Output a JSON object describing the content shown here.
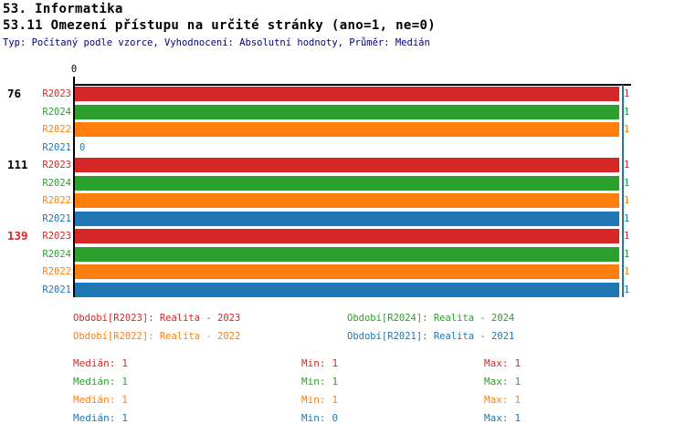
{
  "header": {
    "section_title": "53. Informatika",
    "chart_title": "53.11 Omezení přístupu na určité stránky (ano=1, ne=0)",
    "meta": "Typ: Počítaný podle vzorce, Vyhodnocení: Absolutní hodnoty, Průměr: Medián",
    "meta_color": "#000080"
  },
  "chart_data": {
    "type": "bar",
    "orientation": "horizontal",
    "title": "53.11 Omezení přístupu na určité stránky (ano=1, ne=0)",
    "value_axis": {
      "min": 0,
      "max": 1,
      "origin_tick_label": "0",
      "position": "top"
    },
    "reference_line": {
      "value": 1,
      "color": "#1f77b4"
    },
    "series_colors": {
      "R2023": "#d62728",
      "R2024": "#2ca02c",
      "R2022": "#ff7f0e",
      "R2021": "#1f77b4"
    },
    "groups": [
      {
        "label": "76",
        "label_color": "#000000",
        "bars": [
          {
            "series": "R2023",
            "color": "#d62728",
            "value": 1,
            "value_label": "1"
          },
          {
            "series": "R2024",
            "color": "#2ca02c",
            "value": 1,
            "value_label": "1"
          },
          {
            "series": "R2022",
            "color": "#ff7f0e",
            "value": 1,
            "value_label": "1"
          },
          {
            "series": "R2021",
            "color": "#1f77b4",
            "value": 0,
            "value_label": "0"
          }
        ]
      },
      {
        "label": "111",
        "label_color": "#000000",
        "bars": [
          {
            "series": "R2023",
            "color": "#d62728",
            "value": 1,
            "value_label": "1"
          },
          {
            "series": "R2024",
            "color": "#2ca02c",
            "value": 1,
            "value_label": "1"
          },
          {
            "series": "R2022",
            "color": "#ff7f0e",
            "value": 1,
            "value_label": "1"
          },
          {
            "series": "R2021",
            "color": "#1f77b4",
            "value": 1,
            "value_label": "1"
          }
        ]
      },
      {
        "label": "139",
        "label_color": "#d62728",
        "bars": [
          {
            "series": "R2023",
            "color": "#d62728",
            "value": 1,
            "value_label": "1"
          },
          {
            "series": "R2024",
            "color": "#2ca02c",
            "value": 1,
            "value_label": "1"
          },
          {
            "series": "R2022",
            "color": "#ff7f0e",
            "value": 1,
            "value_label": "1"
          },
          {
            "series": "R2021",
            "color": "#1f77b4",
            "value": 1,
            "value_label": "1"
          }
        ]
      }
    ]
  },
  "legend": {
    "items": [
      {
        "text": "Období[R2023]: Realita - 2023",
        "color": "#d62728"
      },
      {
        "text": "Období[R2024]: Realita - 2024",
        "color": "#2ca02c"
      },
      {
        "text": "Období[R2022]: Realita - 2022",
        "color": "#ff7f0e"
      },
      {
        "text": "Období[R2021]: Realita - 2021",
        "color": "#1f77b4"
      }
    ]
  },
  "stats": {
    "rows": [
      {
        "color": "#d62728",
        "median_label": "Medián:",
        "median": "1",
        "min_label": "Min:",
        "min": "1",
        "max_label": "Max:",
        "max": "1"
      },
      {
        "color": "#2ca02c",
        "median_label": "Medián:",
        "median": "1",
        "min_label": "Min:",
        "min": "1",
        "max_label": "Max:",
        "max": "1"
      },
      {
        "color": "#ff7f0e",
        "median_label": "Medián:",
        "median": "1",
        "min_label": "Min:",
        "min": "1",
        "max_label": "Max:",
        "max": "1"
      },
      {
        "color": "#1f77b4",
        "median_label": "Medián:",
        "median": "1",
        "min_label": "Min:",
        "min": "0",
        "max_label": "Max:",
        "max": "1"
      }
    ]
  }
}
